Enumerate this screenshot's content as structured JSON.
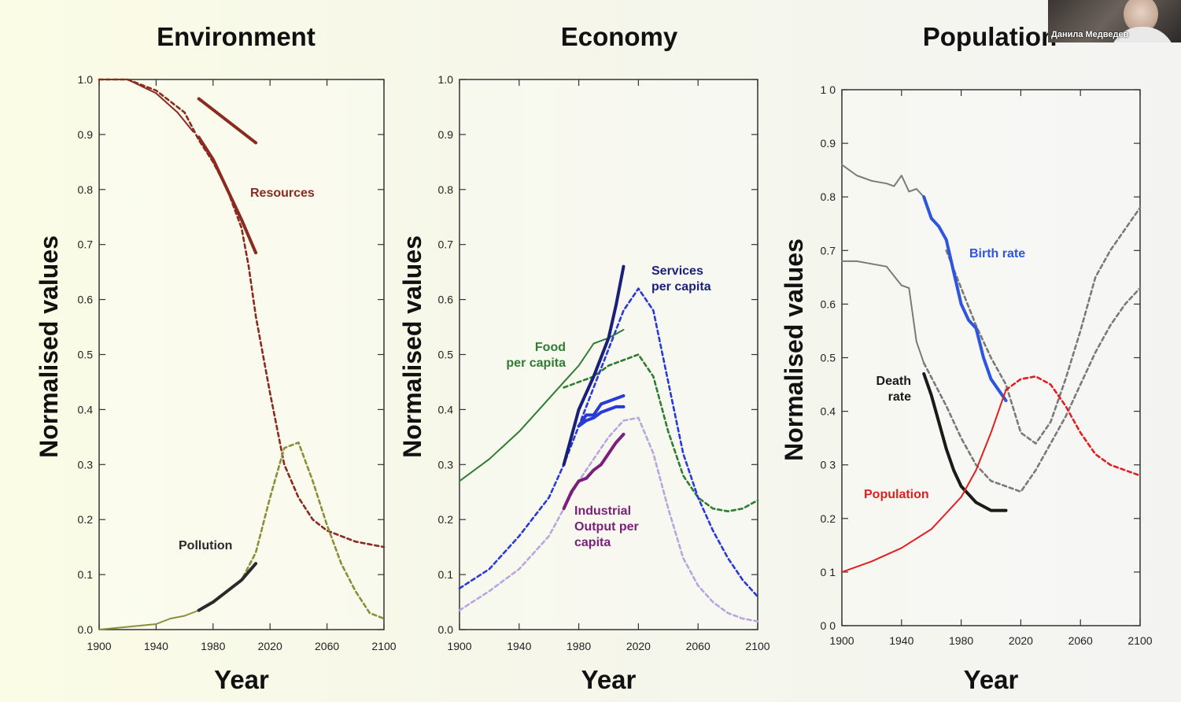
{
  "axis_label_y": "Normalised values",
  "axis_label_x": "Year",
  "x_ticks": [
    "1900",
    "1940",
    "1980",
    "2020",
    "2060",
    "2100"
  ],
  "y_ticks_a": [
    "0.0",
    "0.1",
    "0.2",
    "0.3",
    "0.4",
    "0.5",
    "0.6",
    "0.7",
    "0.8",
    "0.9",
    "1.0"
  ],
  "y_ticks_b": [
    "0 0",
    "0 1",
    "0.2",
    "0 3",
    "0.4",
    "0.5",
    "0.6",
    "0.7",
    "0.8",
    "0.9",
    "1 0"
  ],
  "colors": {
    "resources": "#8b2a1e",
    "pollution": "#2a2a2a",
    "pollution_forecast": "#8a8f3a",
    "food": "#2e7d32",
    "services": "#1a1f7a",
    "industrial": "#7a1f7a",
    "industrial_light": "#b9a6e0",
    "blue": "#2a3ad6",
    "birth": "#2e55e0",
    "death": "#1a1a1a",
    "population": "#e02020",
    "grey": "#7a7a7a"
  },
  "participant": {
    "name": "Данила Медведев"
  },
  "chart_data": [
    {
      "type": "line",
      "title": "Environment",
      "xlabel": "Year",
      "ylabel": "Normalised values",
      "xlim": [
        1900,
        2100
      ],
      "ylim": [
        0,
        1.0
      ],
      "series": [
        {
          "name": "Resources",
          "label": "Resources",
          "style": "forecast",
          "color": "resources",
          "x": [
            1900,
            1920,
            1940,
            1960,
            1970,
            1980,
            1990,
            2000,
            2005,
            2010,
            2020,
            2030,
            2040,
            2050,
            2060,
            2080,
            2100
          ],
          "y": [
            1.0,
            1.0,
            0.98,
            0.94,
            0.89,
            0.85,
            0.8,
            0.73,
            0.66,
            0.57,
            0.43,
            0.3,
            0.24,
            0.2,
            0.18,
            0.16,
            0.15
          ]
        },
        {
          "name": "Resources",
          "label": "Resources",
          "style": "observed",
          "color": "resources",
          "x": [
            1900,
            1920,
            1940,
            1955,
            1966
          ],
          "y": [
            1.0,
            1.0,
            0.975,
            0.94,
            0.905
          ]
        },
        {
          "name": "Resources",
          "label": "Resources",
          "style": "observed",
          "color": "resources",
          "x": [
            1970,
            1980,
            1990,
            2000,
            2010
          ],
          "y": [
            0.965,
            0.945,
            0.925,
            0.905,
            0.885
          ]
        },
        {
          "name": "Resources",
          "label": "Resources",
          "style": "observed",
          "color": "resources",
          "x": [
            1970,
            1980,
            1990,
            2000,
            2010
          ],
          "y": [
            0.895,
            0.855,
            0.8,
            0.745,
            0.685
          ]
        },
        {
          "name": "Pollution",
          "label": "Pollution",
          "style": "forecast",
          "color": "pollution_forecast",
          "x": [
            1990,
            2000,
            2010,
            2020,
            2030,
            2040,
            2050,
            2060,
            2070,
            2080,
            2090,
            2100
          ],
          "y": [
            0.07,
            0.09,
            0.14,
            0.24,
            0.33,
            0.34,
            0.27,
            0.19,
            0.12,
            0.07,
            0.03,
            0.02
          ]
        },
        {
          "name": "Pollution",
          "label": "Pollution",
          "style": "observed",
          "color": "pollution_forecast",
          "x": [
            1900,
            1920,
            1940,
            1950,
            1960,
            1970
          ],
          "y": [
            0.0,
            0.005,
            0.01,
            0.02,
            0.025,
            0.035
          ]
        },
        {
          "name": "Pollution",
          "label": "Pollution",
          "style": "observed",
          "color": "pollution",
          "x": [
            1970,
            1980,
            1990,
            2000,
            2010
          ],
          "y": [
            0.035,
            0.05,
            0.07,
            0.09,
            0.12
          ]
        }
      ]
    },
    {
      "type": "line",
      "title": "Economy",
      "xlabel": "Year",
      "ylabel": "Normalised values",
      "xlim": [
        1900,
        2100
      ],
      "ylim": [
        0,
        1.0
      ],
      "series": [
        {
          "name": "Food per capita",
          "label": "Food per capita",
          "style": "observed",
          "color": "food",
          "x": [
            1900,
            1920,
            1940,
            1950,
            1960,
            1970,
            1980,
            1990,
            2000,
            2010
          ],
          "y": [
            0.27,
            0.31,
            0.36,
            0.39,
            0.42,
            0.45,
            0.48,
            0.52,
            0.53,
            0.545
          ]
        },
        {
          "name": "Food per capita",
          "label": "Food per capita",
          "style": "forecast",
          "color": "food",
          "x": [
            1970,
            1980,
            1990,
            2000,
            2010,
            2020,
            2030,
            2040,
            2050,
            2060,
            2070,
            2080,
            2090,
            2100
          ],
          "y": [
            0.44,
            0.45,
            0.46,
            0.48,
            0.49,
            0.5,
            0.46,
            0.36,
            0.28,
            0.24,
            0.22,
            0.215,
            0.22,
            0.235
          ]
        },
        {
          "name": "Services per capita",
          "label": "Services per capita",
          "style": "observed",
          "color": "services",
          "x": [
            1970,
            1980,
            1990,
            2000,
            2005,
            2010
          ],
          "y": [
            0.3,
            0.4,
            0.46,
            0.53,
            0.59,
            0.66
          ]
        },
        {
          "name": "Services per capita",
          "label": "Services per capita",
          "style": "forecast",
          "color": "blue",
          "x": [
            1900,
            1920,
            1940,
            1960,
            1970,
            1980,
            1990,
            2000,
            2010,
            2020,
            2030,
            2040,
            2050,
            2060,
            2070,
            2080,
            2090,
            2100
          ],
          "y": [
            0.075,
            0.11,
            0.17,
            0.24,
            0.3,
            0.37,
            0.44,
            0.51,
            0.58,
            0.62,
            0.58,
            0.45,
            0.32,
            0.24,
            0.18,
            0.13,
            0.09,
            0.06
          ]
        },
        {
          "name": "Services per capita",
          "label": "Services per capita",
          "style": "observed",
          "color": "blue",
          "x": [
            1980,
            1985,
            1990,
            1995,
            2000,
            2005,
            2010
          ],
          "y": [
            0.37,
            0.39,
            0.39,
            0.41,
            0.415,
            0.42,
            0.425
          ]
        },
        {
          "name": "Services per capita",
          "label": "Services per capita",
          "style": "observed",
          "color": "blue",
          "x": [
            1980,
            1985,
            1990,
            1995,
            2000,
            2005,
            2010
          ],
          "y": [
            0.37,
            0.38,
            0.385,
            0.395,
            0.4,
            0.405,
            0.405
          ]
        },
        {
          "name": "Industrial Output per capita",
          "label": "Industrial Output per capita",
          "style": "forecast",
          "color": "industrial_light",
          "x": [
            1900,
            1920,
            1940,
            1960,
            1970,
            1980,
            1990,
            2000,
            2010,
            2020,
            2030,
            2040,
            2050,
            2060,
            2070,
            2080,
            2090,
            2100
          ],
          "y": [
            0.035,
            0.07,
            0.11,
            0.17,
            0.22,
            0.27,
            0.31,
            0.35,
            0.38,
            0.385,
            0.32,
            0.22,
            0.13,
            0.08,
            0.05,
            0.03,
            0.02,
            0.015
          ]
        },
        {
          "name": "Industrial Output per capita",
          "label": "Industrial Output per capita",
          "style": "observed",
          "color": "industrial",
          "x": [
            1970,
            1975,
            1980,
            1985,
            1990,
            1995,
            2000,
            2005,
            2010
          ],
          "y": [
            0.22,
            0.25,
            0.27,
            0.275,
            0.29,
            0.3,
            0.32,
            0.34,
            0.355
          ]
        }
      ]
    },
    {
      "type": "line",
      "title": "Population",
      "xlabel": "Year",
      "ylabel": "Normalised values",
      "xlim": [
        1900,
        2100
      ],
      "ylim": [
        0,
        1.0
      ],
      "series": [
        {
          "name": "Birth rate",
          "label": "Birth rate",
          "style": "observed",
          "color": "grey",
          "x": [
            1900,
            1910,
            1920,
            1930,
            1935,
            1940,
            1945,
            1950,
            1955
          ],
          "y": [
            0.86,
            0.84,
            0.83,
            0.825,
            0.82,
            0.84,
            0.81,
            0.815,
            0.8
          ]
        },
        {
          "name": "Birth rate",
          "label": "Birth rate",
          "style": "observed",
          "color": "birth",
          "x": [
            1955,
            1960,
            1965,
            1970,
            1975,
            1980,
            1985,
            1990,
            1995,
            2000,
            2010
          ],
          "y": [
            0.8,
            0.76,
            0.745,
            0.72,
            0.66,
            0.6,
            0.57,
            0.555,
            0.5,
            0.46,
            0.42
          ]
        },
        {
          "name": "Birth rate",
          "label": "Birth rate",
          "style": "forecast",
          "color": "grey",
          "x": [
            1970,
            1980,
            1990,
            2000,
            2010,
            2020,
            2030,
            2040,
            2050,
            2060,
            2070,
            2080,
            2090,
            2100
          ],
          "y": [
            0.7,
            0.63,
            0.56,
            0.5,
            0.45,
            0.36,
            0.34,
            0.38,
            0.46,
            0.55,
            0.65,
            0.7,
            0.74,
            0.78
          ]
        },
        {
          "name": "Death rate",
          "label": "Death rate",
          "style": "observed",
          "color": "grey",
          "x": [
            1900,
            1910,
            1920,
            1930,
            1940,
            1945,
            1950,
            1955
          ],
          "y": [
            0.68,
            0.68,
            0.675,
            0.67,
            0.635,
            0.63,
            0.53,
            0.49
          ]
        },
        {
          "name": "Death rate",
          "label": "Death rate",
          "style": "forecast",
          "color": "grey",
          "x": [
            1955,
            1970,
            1980,
            1990,
            2000,
            2010,
            2020,
            2030,
            2040,
            2050,
            2060,
            2070,
            2080,
            2090,
            2100
          ],
          "y": [
            0.49,
            0.41,
            0.35,
            0.3,
            0.27,
            0.26,
            0.25,
            0.29,
            0.34,
            0.39,
            0.45,
            0.51,
            0.56,
            0.6,
            0.63
          ]
        },
        {
          "name": "Death rate",
          "label": "Death rate",
          "style": "observed",
          "color": "death",
          "x": [
            1955,
            1960,
            1965,
            1970,
            1975,
            1980,
            1990,
            2000,
            2010
          ],
          "y": [
            0.47,
            0.43,
            0.38,
            0.33,
            0.29,
            0.26,
            0.23,
            0.215,
            0.215
          ]
        },
        {
          "name": "Population",
          "label": "Population",
          "style": "observed",
          "color": "population",
          "x": [
            1900,
            1920,
            1940,
            1960,
            1970,
            1980,
            1990,
            2000,
            2010
          ],
          "y": [
            0.1,
            0.12,
            0.145,
            0.18,
            0.21,
            0.24,
            0.29,
            0.36,
            0.44
          ]
        },
        {
          "name": "Population",
          "label": "Population",
          "style": "forecast",
          "color": "population",
          "x": [
            2010,
            2020,
            2030,
            2040,
            2050,
            2060,
            2070,
            2080,
            2090,
            2100
          ],
          "y": [
            0.44,
            0.46,
            0.465,
            0.45,
            0.41,
            0.36,
            0.32,
            0.3,
            0.29,
            0.28
          ]
        }
      ]
    }
  ]
}
